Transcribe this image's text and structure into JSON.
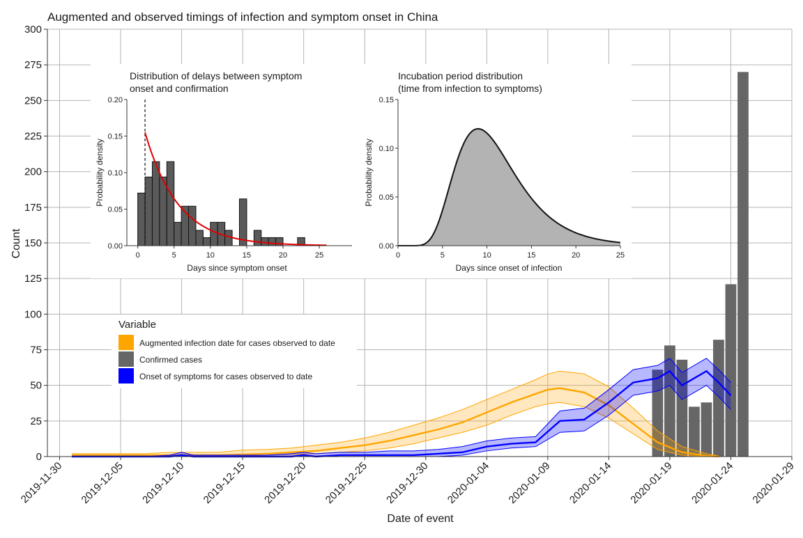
{
  "chart_data": [
    {
      "id": "main",
      "type": "bar+line",
      "title": "Augmented and observed timings of infection and symptom onset in China",
      "xlabel": "Date of event",
      "ylabel": "Count",
      "ylim": [
        0,
        300
      ],
      "yticks": [
        0,
        25,
        50,
        75,
        100,
        125,
        150,
        175,
        200,
        225,
        250,
        275,
        300
      ],
      "xrange_days": [
        -1,
        60
      ],
      "xticks": [
        {
          "day": 0,
          "label": "2019-11-30"
        },
        {
          "day": 5,
          "label": "2019-12-05"
        },
        {
          "day": 10,
          "label": "2019-12-10"
        },
        {
          "day": 15,
          "label": "2019-12-15"
        },
        {
          "day": 20,
          "label": "2019-12-20"
        },
        {
          "day": 25,
          "label": "2019-12-25"
        },
        {
          "day": 30,
          "label": "2019-12-30"
        },
        {
          "day": 35,
          "label": "2020-01-04"
        },
        {
          "day": 40,
          "label": "2020-01-09"
        },
        {
          "day": 45,
          "label": "2020-01-14"
        },
        {
          "day": 50,
          "label": "2020-01-19"
        },
        {
          "day": 55,
          "label": "2020-01-24"
        },
        {
          "day": 60,
          "label": "2020-01-29"
        }
      ],
      "legend": {
        "title": "Variable",
        "position": "left-middle",
        "items": [
          {
            "label": "Augmented infection date for cases observed to date",
            "color": "#FFA500"
          },
          {
            "label": "Confirmed cases",
            "color": "#666666"
          },
          {
            "label": "Onset of symptoms for cases observed to date",
            "color": "#0000FF"
          }
        ]
      },
      "series": [
        {
          "name": "Confirmed cases",
          "type": "bar",
          "color": "#666666",
          "x": [
            49,
            50,
            51,
            52,
            53,
            54,
            55,
            56
          ],
          "values": [
            61,
            78,
            68,
            35,
            38,
            82,
            121,
            270
          ]
        },
        {
          "name": "Augmented infection date for cases observed to date",
          "type": "line-ribbon",
          "color": "#FFA500",
          "x": [
            1,
            3,
            5,
            7,
            9,
            11,
            13,
            15,
            17,
            19,
            21,
            23,
            25,
            27,
            29,
            31,
            33,
            35,
            37,
            39,
            40,
            41,
            43,
            45,
            47,
            49,
            51,
            53,
            54
          ],
          "mean": [
            1,
            1,
            1,
            1,
            1,
            1,
            1,
            1.5,
            2,
            3,
            4,
            6,
            8,
            11,
            15,
            19,
            24,
            31,
            38,
            44,
            47,
            48,
            45,
            36,
            23,
            10,
            3,
            0.5,
            0
          ],
          "lower": [
            0,
            0,
            0,
            0,
            0,
            0,
            0,
            0.5,
            1,
            1.5,
            2,
            3,
            4,
            6,
            9,
            13,
            17,
            22,
            29,
            35,
            37,
            38,
            35,
            27,
            16,
            5,
            1,
            0,
            0
          ],
          "upper": [
            2,
            2,
            2,
            2,
            3,
            3,
            3,
            4.5,
            5,
            6,
            8,
            10,
            13,
            17,
            22,
            27,
            33,
            40,
            47,
            54,
            58,
            60,
            58,
            49,
            34,
            18,
            7,
            2,
            0.5
          ]
        },
        {
          "name": "Onset of symptoms for cases observed to date",
          "type": "line-ribbon",
          "color": "#0000FF",
          "x": [
            1,
            3,
            5,
            7,
            9,
            10,
            11,
            13,
            15,
            17,
            19,
            20,
            21,
            23,
            25,
            27,
            29,
            31,
            33,
            35,
            37,
            39,
            41,
            43,
            45,
            47,
            49,
            50,
            51,
            52,
            53,
            54,
            55
          ],
          "mean": [
            0,
            0,
            0,
            0,
            0,
            1,
            0,
            0,
            0,
            0,
            0,
            1,
            0,
            1,
            1,
            1,
            1,
            2,
            3,
            7,
            9,
            10,
            25,
            26,
            38,
            52,
            55,
            60,
            50,
            55,
            60,
            52,
            43
          ],
          "lower": [
            0,
            0,
            0,
            0,
            0,
            0,
            0,
            0,
            0,
            0,
            0,
            0,
            0,
            0,
            0,
            0,
            0,
            0,
            1,
            4,
            6,
            7,
            17,
            18,
            29,
            43,
            46,
            50,
            40,
            45,
            50,
            42,
            33
          ],
          "upper": [
            0,
            0,
            0,
            0,
            1,
            3,
            1,
            1,
            1,
            1,
            2,
            3,
            2,
            3,
            3,
            4,
            4,
            5,
            7,
            11,
            13,
            14,
            32,
            34,
            47,
            61,
            64,
            69,
            59,
            64,
            69,
            61,
            52
          ]
        }
      ]
    },
    {
      "id": "inset_delays",
      "type": "histogram+line",
      "title": "Distribution of delays between symptom\n onset and confirmation",
      "xlabel": "Days since symptom onset",
      "ylabel": "Probability density",
      "xlim": [
        -1.5,
        29.5
      ],
      "ylim": [
        0,
        0.2
      ],
      "xticks": [
        0,
        5,
        10,
        15,
        20,
        25
      ],
      "yticks": [
        0.0,
        0.05,
        0.1,
        0.15,
        0.2
      ],
      "ytick_labels": [
        "0.00",
        "0.05",
        "0.10",
        "0.15",
        "0.20"
      ],
      "vline_x": 1,
      "bins": [
        {
          "x0": 0,
          "x1": 1,
          "density": 0.072
        },
        {
          "x0": 1,
          "x1": 2,
          "density": 0.094
        },
        {
          "x0": 2,
          "x1": 3,
          "density": 0.115
        },
        {
          "x0": 3,
          "x1": 4,
          "density": 0.094
        },
        {
          "x0": 4,
          "x1": 5,
          "density": 0.115
        },
        {
          "x0": 5,
          "x1": 6,
          "density": 0.032
        },
        {
          "x0": 6,
          "x1": 7,
          "density": 0.054
        },
        {
          "x0": 7,
          "x1": 8,
          "density": 0.054
        },
        {
          "x0": 8,
          "x1": 9,
          "density": 0.021
        },
        {
          "x0": 9,
          "x1": 10,
          "density": 0.011
        },
        {
          "x0": 10,
          "x1": 11,
          "density": 0.032
        },
        {
          "x0": 11,
          "x1": 12,
          "density": 0.032
        },
        {
          "x0": 12,
          "x1": 13,
          "density": 0.021
        },
        {
          "x0": 14,
          "x1": 15,
          "density": 0.064
        },
        {
          "x0": 16,
          "x1": 17,
          "density": 0.021
        },
        {
          "x0": 17,
          "x1": 18,
          "density": 0.011
        },
        {
          "x0": 18,
          "x1": 19,
          "density": 0.011
        },
        {
          "x0": 19,
          "x1": 20,
          "density": 0.011
        },
        {
          "x0": 22,
          "x1": 23,
          "density": 0.011
        }
      ],
      "fit_curve": {
        "color": "#E00000",
        "x_from": 1,
        "x_to": 26,
        "y_start": 0.155,
        "decay_per_day": 0.22
      }
    },
    {
      "id": "inset_incubation",
      "type": "area",
      "title": "Incubation period distribution\n (time from infection to symptoms)",
      "xlabel": "Days since onset of infection",
      "ylabel": "Probability density",
      "xlim": [
        0,
        25
      ],
      "ylim": [
        0,
        0.15
      ],
      "xticks": [
        0,
        5,
        10,
        15,
        20,
        25
      ],
      "yticks": [
        0.0,
        0.05,
        0.1,
        0.15
      ],
      "ytick_labels": [
        "0.00",
        "0.05",
        "0.10",
        "0.15"
      ],
      "fill_color": "#B3B3B3",
      "curve": {
        "family": "lognormal",
        "mode_day": 9,
        "peak_density": 0.12,
        "log_sd": 0.38
      }
    }
  ]
}
